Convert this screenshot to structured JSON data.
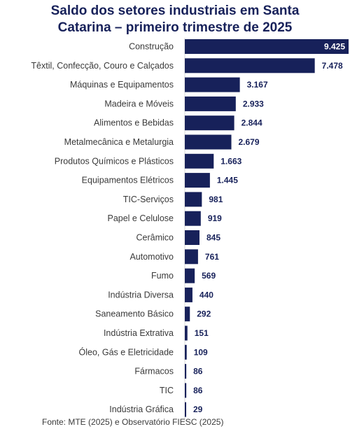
{
  "chart_data": {
    "type": "bar",
    "orientation": "horizontal",
    "title_lines": [
      "Saldo dos setores industriais em Santa",
      "Catarina – primeiro trimestre de 2025"
    ],
    "categories": [
      "Construção",
      "Têxtil, Confecção, Couro e Calçados",
      "Máquinas e Equipamentos",
      "Madeira e Móveis",
      "Alimentos e Bebidas",
      "Metalmecânica e Metalurgia",
      "Produtos Químicos e Plásticos",
      "Equipamentos Elétricos",
      "TIC-Serviços",
      "Papel e Celulose",
      "Cerâmico",
      "Automotivo",
      "Fumo",
      "Indústria Diversa",
      "Saneamento Básico",
      "Indústria Extrativa",
      "Óleo, Gás e Eletricidade",
      "Fármacos",
      "TIC",
      "Indústria Gráfica"
    ],
    "values": [
      9425,
      7478,
      3167,
      2933,
      2844,
      2679,
      1663,
      1445,
      981,
      919,
      845,
      761,
      569,
      440,
      292,
      151,
      109,
      86,
      86,
      29
    ],
    "labels": [
      "9.425",
      "7.478",
      "3.167",
      "2.933",
      "2.844",
      "2.679",
      "1.663",
      "1.445",
      "981",
      "919",
      "845",
      "761",
      "569",
      "440",
      "292",
      "151",
      "109",
      "86",
      "86",
      "29"
    ],
    "bar_color": "#17215a",
    "label_color": "#17215a",
    "grid": false,
    "legend": false
  },
  "source": "Fonte: MTE (2025) e Observatório FIESC (2025)"
}
